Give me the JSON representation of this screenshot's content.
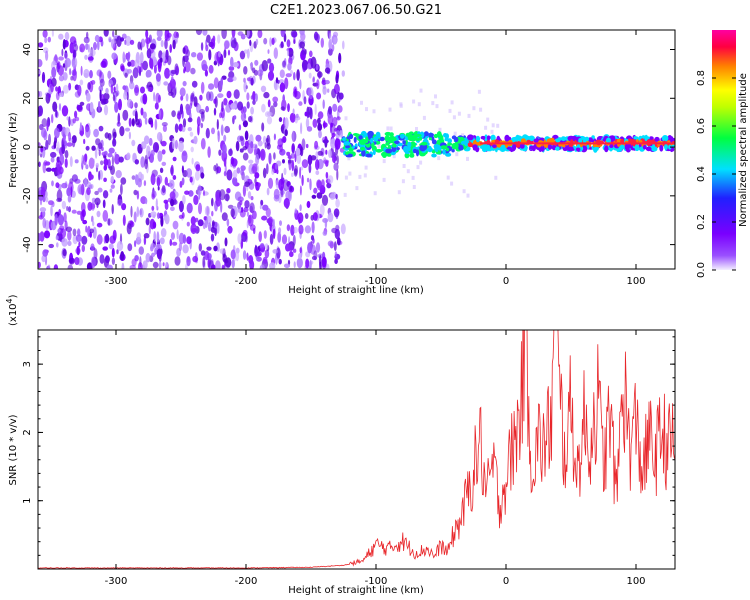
{
  "title": "C2E1.2023.067.06.50.G21",
  "chart_data": [
    {
      "type": "heatmap",
      "xlabel": "Height of straight line (km)",
      "ylabel": "Frequency (Hz)",
      "xlim": [
        -360,
        130
      ],
      "ylim": [
        -50,
        48
      ],
      "xticks": [
        -300,
        -200,
        -100,
        0,
        100
      ],
      "yticks": [
        -40,
        -20,
        0,
        20,
        40
      ],
      "colorbar": {
        "label": "Normalized spectral amplitude",
        "range": [
          0.0,
          1.0
        ],
        "ticks": [
          0.0,
          0.2,
          0.4,
          0.6,
          0.8
        ],
        "colormap": [
          "#f0f0ff",
          "#7a00ff",
          "#0000ff",
          "#00e0ff",
          "#00ff40",
          "#ffff00",
          "#ff8000",
          "#ff0040",
          "#ff00a0"
        ]
      },
      "regions": [
        {
          "desc": "broadband noise",
          "x": [
            -360,
            -125
          ],
          "freq": [
            -50,
            48
          ],
          "amplitude": 0.1
        },
        {
          "desc": "signal trace",
          "x": [
            -125,
            130
          ],
          "freq": [
            -3,
            5
          ],
          "amplitude": 0.9
        }
      ]
    },
    {
      "type": "line",
      "xlabel": "Height of straight line (km)",
      "ylabel": "SNR (10 * v/v)",
      "yscale_label": "(x10^4)",
      "xlim": [
        -360,
        130
      ],
      "ylim": [
        0,
        3.5
      ],
      "xticks": [
        -300,
        -200,
        -100,
        0,
        100
      ],
      "yticks": [
        1,
        2,
        3
      ],
      "series": [
        {
          "color": "#e8262a",
          "x": [
            -360,
            -300,
            -200,
            -150,
            -125,
            -110,
            -100,
            -90,
            -80,
            -70,
            -60,
            -55,
            -50,
            -45,
            -40,
            -35,
            -30,
            -25,
            -20,
            -15,
            -10,
            -5,
            0,
            5,
            10,
            15,
            20,
            25,
            30,
            35,
            38,
            40,
            45,
            50,
            55,
            60,
            65,
            70,
            75,
            80,
            85,
            90,
            95,
            100,
            105,
            110,
            115,
            120,
            125,
            130
          ],
          "y": [
            0.01,
            0.01,
            0.01,
            0.02,
            0.05,
            0.1,
            0.3,
            0.25,
            0.35,
            0.2,
            0.25,
            0.15,
            0.3,
            0.2,
            0.45,
            0.6,
            0.9,
            1.2,
            1.6,
            0.9,
            1.3,
            0.8,
            1.1,
            1.5,
            1.8,
            3.1,
            1.2,
            1.6,
            1.5,
            1.9,
            3.5,
            2.4,
            1.4,
            2.0,
            1.2,
            1.8,
            1.5,
            2.2,
            1.3,
            1.9,
            0.9,
            2.4,
            1.5,
            1.8,
            1.2,
            1.6,
            1.4,
            1.7,
            1.5,
            1.6
          ]
        }
      ]
    }
  ]
}
